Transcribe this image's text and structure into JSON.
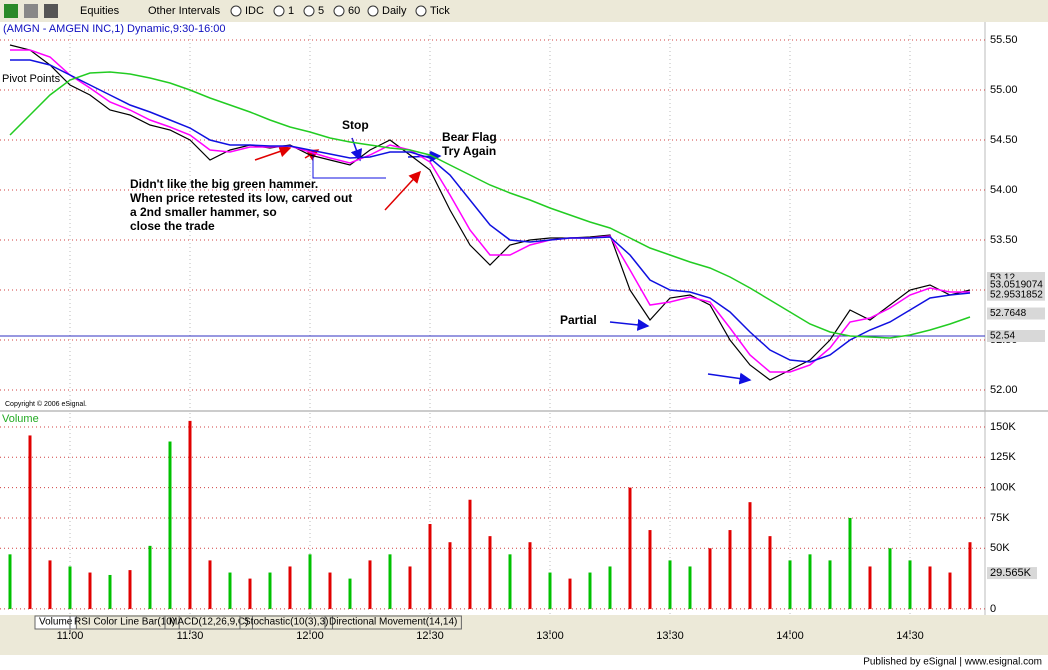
{
  "toolbar": {
    "items": [
      "Equities",
      "Other Intervals",
      "IDC",
      "1",
      "5",
      "60",
      "Daily",
      "Tick"
    ]
  },
  "chart_data": [
    {
      "type": "line",
      "title": "(AMGN - AMGEN INC,1) Dynamic,9:30-16:00",
      "study_label": "Pivot Points",
      "copyright": "Copyright © 2006 eSignal.",
      "x": [
        645,
        650,
        655,
        660,
        665,
        670,
        675,
        680,
        685,
        690,
        695,
        700,
        705,
        710,
        715,
        720,
        725,
        730,
        735,
        740,
        745,
        750,
        755,
        760,
        765,
        770,
        775,
        780,
        785,
        790,
        795,
        800,
        805,
        810,
        815,
        820,
        825,
        830,
        835,
        840,
        845,
        850,
        855,
        860,
        865,
        870,
        875,
        880,
        885
      ],
      "xlim": [
        642.5,
        888.5
      ],
      "ylim": [
        51.8,
        55.55
      ],
      "yticks": [
        {
          "value": 55.5,
          "label": "55.50"
        },
        {
          "value": 55,
          "label": "55.00"
        },
        {
          "value": 54.5,
          "label": "54.50"
        },
        {
          "value": 54,
          "label": "54.00"
        },
        {
          "value": 53.5,
          "label": "53.50"
        },
        {
          "value": 53,
          "label": "53.00"
        },
        {
          "value": 52.5,
          "label": "52.50"
        },
        {
          "value": 52,
          "label": "52.00"
        }
      ],
      "grid": true,
      "series": [
        {
          "color": "#000000",
          "values": [
            55.45,
            55.4,
            55.25,
            55.05,
            54.95,
            54.8,
            54.75,
            54.65,
            54.6,
            54.5,
            54.3,
            54.4,
            54.45,
            54.42,
            54.45,
            54.35,
            54.3,
            54.25,
            54.4,
            54.5,
            54.35,
            54.2,
            53.8,
            53.45,
            53.25,
            53.45,
            53.5,
            53.52,
            53.52,
            53.53,
            53.55,
            53.0,
            52.7,
            52.92,
            52.95,
            52.85,
            52.5,
            52.25,
            52.1,
            52.2,
            52.3,
            52.5,
            52.8,
            52.7,
            52.85,
            53.0,
            53.05,
            52.95,
            53.0
          ]
        },
        {
          "color": "#ff00ff",
          "values": [
            55.4,
            55.4,
            55.33,
            55.15,
            55.02,
            54.88,
            54.8,
            54.7,
            54.63,
            54.55,
            54.4,
            54.38,
            54.43,
            54.43,
            54.44,
            54.38,
            54.32,
            54.27,
            54.35,
            54.45,
            54.4,
            54.28,
            53.95,
            53.6,
            53.35,
            53.35,
            53.45,
            53.5,
            53.52,
            53.52,
            53.54,
            53.2,
            52.85,
            52.88,
            52.93,
            52.88,
            52.62,
            52.35,
            52.18,
            52.18,
            52.25,
            52.42,
            52.68,
            52.72,
            52.82,
            52.95,
            53.02,
            52.98,
            52.98
          ]
        },
        {
          "color": "#1010e0",
          "values": [
            55.3,
            55.3,
            55.25,
            55.15,
            55.05,
            54.95,
            54.85,
            54.78,
            54.7,
            54.62,
            54.5,
            54.45,
            54.45,
            54.44,
            54.44,
            54.4,
            54.36,
            54.32,
            54.33,
            54.38,
            54.38,
            54.32,
            54.15,
            53.9,
            53.65,
            53.5,
            53.48,
            53.5,
            53.52,
            53.52,
            53.53,
            53.35,
            53.1,
            53.0,
            52.98,
            52.92,
            52.78,
            52.58,
            52.4,
            52.3,
            52.28,
            52.35,
            52.5,
            52.6,
            52.68,
            52.8,
            52.92,
            52.95,
            52.97
          ]
        },
        {
          "color": "#22cc22",
          "values": [
            54.55,
            54.75,
            54.95,
            55.1,
            55.17,
            55.18,
            55.16,
            55.12,
            55.07,
            55.0,
            54.92,
            54.85,
            54.78,
            54.7,
            54.63,
            54.58,
            54.52,
            54.48,
            54.45,
            54.42,
            54.4,
            54.35,
            54.25,
            54.15,
            54.05,
            53.97,
            53.9,
            53.82,
            53.75,
            53.68,
            53.62,
            53.52,
            53.42,
            53.35,
            53.28,
            53.22,
            53.13,
            53.02,
            52.9,
            52.78,
            52.66,
            52.58,
            52.54,
            52.53,
            52.52,
            52.55,
            52.6,
            52.66,
            52.73
          ]
        }
      ],
      "price_flags": [
        {
          "value": 53.12,
          "color": "#d8d8d8"
        },
        {
          "value": 53.0519074,
          "color": "#d8d8d8"
        },
        {
          "value": 52.9531852,
          "color": "#d8d8d8"
        },
        {
          "value": 52.7648,
          "color": "#d8d8d8"
        },
        {
          "value": 52.54,
          "color": "#d8d8d8"
        }
      ],
      "annotations": [
        "Stop",
        "Bear Flag",
        "Try Again",
        "Didn't like the big green hammer.",
        "When price retested its low, carved out",
        "a 2nd smaller hammer, so",
        "close the trade",
        "Partial"
      ]
    },
    {
      "type": "bar",
      "title": "Volume",
      "x": [
        645,
        650,
        655,
        660,
        665,
        670,
        675,
        680,
        685,
        690,
        695,
        700,
        705,
        710,
        715,
        720,
        725,
        730,
        735,
        740,
        745,
        750,
        755,
        760,
        765,
        770,
        775,
        780,
        785,
        790,
        795,
        800,
        805,
        810,
        815,
        820,
        825,
        830,
        835,
        840,
        845,
        850,
        855,
        860,
        865,
        870,
        875,
        880,
        885
      ],
      "xlim": [
        642.5,
        888.5
      ],
      "xticks": [
        {
          "value": 660,
          "label": "11:00"
        },
        {
          "value": 690,
          "label": "11:30"
        },
        {
          "value": 720,
          "label": "12:00"
        },
        {
          "value": 750,
          "label": "12:30"
        },
        {
          "value": 780,
          "label": "13:00"
        },
        {
          "value": 810,
          "label": "13:30"
        },
        {
          "value": 840,
          "label": "14:00"
        },
        {
          "value": 870,
          "label": "14:30"
        }
      ],
      "values": [
        45000,
        143000,
        40000,
        35000,
        30000,
        28000,
        32000,
        52000,
        138000,
        155000,
        40000,
        30000,
        25000,
        30000,
        35000,
        45000,
        30000,
        25000,
        40000,
        45000,
        35000,
        70000,
        55000,
        90000,
        60000,
        45000,
        55000,
        30000,
        25000,
        30000,
        35000,
        100000,
        65000,
        40000,
        35000,
        50000,
        65000,
        88000,
        60000,
        40000,
        45000,
        40000,
        75000,
        35000,
        50000,
        40000,
        35000,
        30000,
        55000
      ],
      "colors": [
        "#00c000",
        "#e00000",
        "#e00000",
        "#00c000",
        "#e00000",
        "#00c000",
        "#e00000",
        "#00c000",
        "#00c000",
        "#e00000",
        "#e00000",
        "#00c000",
        "#e00000",
        "#00c000",
        "#e00000",
        "#00c000",
        "#e00000",
        "#00c000",
        "#e00000",
        "#00c000",
        "#e00000",
        "#e00000",
        "#e00000",
        "#e00000",
        "#e00000",
        "#00c000",
        "#e00000",
        "#00c000",
        "#e00000",
        "#00c000",
        "#00c000",
        "#e00000",
        "#e00000",
        "#00c000",
        "#00c000",
        "#e00000",
        "#e00000",
        "#e00000",
        "#e00000",
        "#00c000",
        "#00c000",
        "#00c000",
        "#00c000",
        "#e00000",
        "#00c000",
        "#00c000",
        "#e00000",
        "#e00000",
        "#e00000"
      ],
      "ylim": [
        -5000,
        161500
      ],
      "yticks": [
        {
          "value": 150000,
          "label": "150K"
        },
        {
          "value": 125000,
          "label": "125K"
        },
        {
          "value": 100000,
          "label": "100K"
        },
        {
          "value": 75000,
          "label": "75K"
        },
        {
          "value": 50000,
          "label": "50K"
        },
        0
      ],
      "grid": true,
      "flag": {
        "value": 29565,
        "label": "29.565K"
      }
    }
  ],
  "tabs": [
    "Volume",
    "RSI Color Line Bar(10)",
    "MACD(12,26,9,C)",
    "Stochastic(10(3),3)",
    "Directional Movement(14,14)"
  ],
  "footer": "Published by eSignal | www.esignal.com"
}
